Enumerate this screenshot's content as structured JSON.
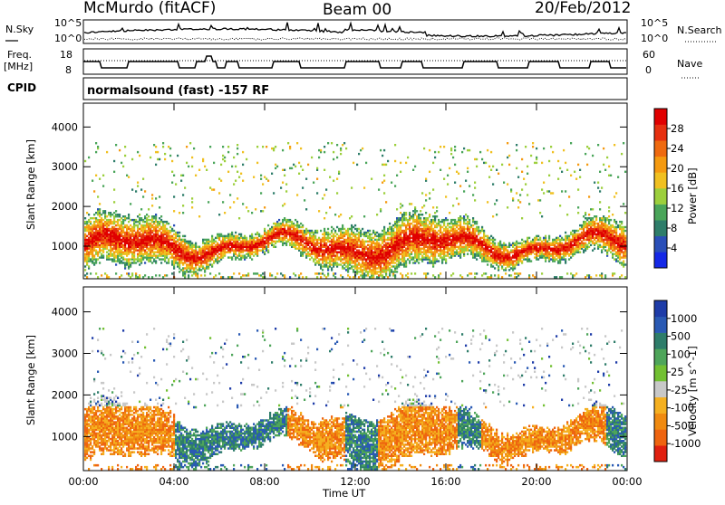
{
  "header": {
    "station": "McMurdo (fitACF)",
    "beam": "Beam 00",
    "date": "20/Feb/2012"
  },
  "noise_panel": {
    "left_label": "N.Sky",
    "right_label": "N.Search",
    "left_ticks": [
      "10^5",
      "10^0"
    ],
    "right_ticks": [
      "10^5",
      "10^0"
    ]
  },
  "freq_panel": {
    "left_label_1": "Freq.",
    "left_label_2": "[MHz]",
    "left_ticks": [
      "18",
      "8"
    ],
    "right_label": "Nave",
    "right_ticks": [
      "60",
      "0"
    ]
  },
  "cpid_panel": {
    "label": "CPID",
    "text": "normalsound (fast) -157 RF"
  },
  "chart_data": [
    {
      "type": "heatmap",
      "panel": "power",
      "ylabel": "Slant Range [km]",
      "ylim": [
        180,
        4600
      ],
      "xlim": [
        0,
        24
      ],
      "x_ticks": [
        "00:00",
        "04:00",
        "08:00",
        "12:00",
        "16:00",
        "20:00",
        "00:00"
      ],
      "y_ticks": [
        1000,
        2000,
        3000,
        4000
      ],
      "colorbar": {
        "label": "Power [dB]",
        "ticks": [
          "4",
          "8",
          "12",
          "16",
          "20",
          "24",
          "28"
        ],
        "colors": [
          "#1428e6",
          "#2a4fb8",
          "#2e7d6a",
          "#4aa55a",
          "#9ccf3c",
          "#f0c020",
          "#f59a10",
          "#ef6a10",
          "#e63010",
          "#e00000"
        ]
      }
    },
    {
      "type": "heatmap",
      "panel": "velocity",
      "ylabel": "Slant Range [km]",
      "ylim": [
        180,
        4600
      ],
      "xlim": [
        0,
        24
      ],
      "x_ticks": [
        "00:00",
        "04:00",
        "08:00",
        "12:00",
        "16:00",
        "20:00",
        "00:00"
      ],
      "y_ticks": [
        1000,
        2000,
        3000,
        4000
      ],
      "xlabel": "Time UT",
      "colorbar": {
        "label": "Velocity [m s^-1]",
        "ticks": [
          "1000",
          "500",
          "100",
          "25",
          "-25",
          "-100",
          "-500",
          "-1000"
        ],
        "colors": [
          "#1e3ca8",
          "#2a5ab4",
          "#2e7d6a",
          "#4ea55a",
          "#72c032",
          "#c8c8c8",
          "#f5b020",
          "#f08a10",
          "#ee6410",
          "#e02010"
        ]
      }
    }
  ]
}
